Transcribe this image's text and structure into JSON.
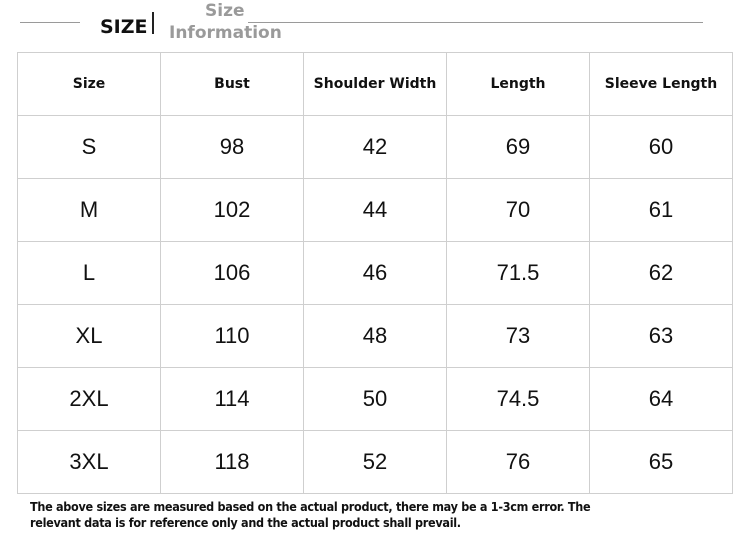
{
  "header": {
    "title": "SIZE",
    "subtitle": [
      "Size",
      "Information"
    ]
  },
  "table": {
    "columns": [
      "Size",
      "Bust",
      "Shoulder Width",
      "Length",
      "Sleeve Length"
    ],
    "rows": [
      [
        "S",
        98,
        42,
        69,
        60
      ],
      [
        "M",
        102,
        44,
        70,
        61
      ],
      [
        "L",
        106,
        46,
        71.5,
        62
      ],
      [
        "XL",
        110,
        48,
        73,
        63
      ],
      [
        "2XL",
        114,
        50,
        74.5,
        64
      ],
      [
        "3XL",
        118,
        52,
        76,
        65
      ]
    ]
  },
  "note": [
    "The above sizes are measured based on the actual product, there may be a 1-3cm error. The",
    "relevant data is for reference only and the actual product shall prevail."
  ]
}
